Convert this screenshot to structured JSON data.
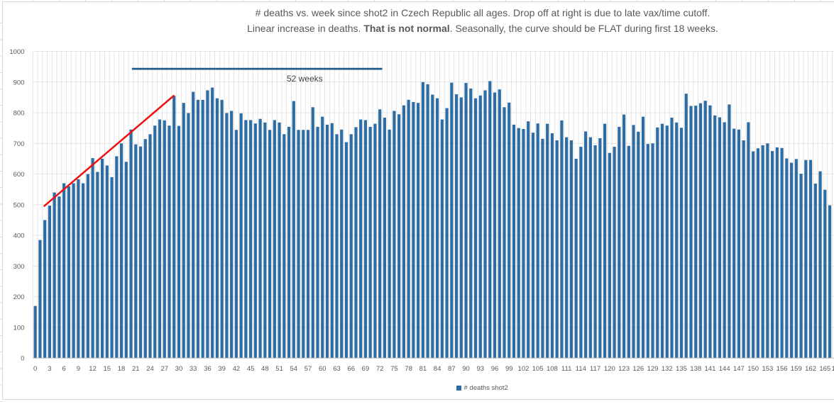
{
  "title": {
    "line1": "# deaths vs. week since shot2 in Czech Republic all ages. Drop off at right is due to late vax/time cutoff.",
    "line2_normal1": "Linear increase in deaths. ",
    "line2_bold": "That is not normal",
    "line2_normal2": ". Seasonally, the curve should be FLAT during first 18 weeks."
  },
  "legend": {
    "label": "# deaths shot2"
  },
  "annotation": {
    "label": "52 weeks",
    "line": {
      "from_week": 20.7,
      "to_week": 73.0,
      "value": 943
    },
    "label_week": 56.3,
    "label_value": 902
  },
  "trendline": {
    "from": {
      "week": 1.9,
      "value": 496
    },
    "to": {
      "week": 28.9,
      "value": 855
    }
  },
  "colors": {
    "bar": "#2E6DA4",
    "grid": "#DCDCDC",
    "axis": "#BFBFBF",
    "tick_text": "#595959",
    "title_text": "#595959",
    "annotation_line": "#1F5C8C",
    "annotation_text": "#3F3F3F",
    "trend_line": "#EE1111",
    "chart_border": "#D9D9D9"
  },
  "chart_data": {
    "type": "bar",
    "title": "# deaths vs. week since shot2 in Czech Republic all ages. Drop off at right is due to late vax/time cutoff. Linear increase in deaths. That is not normal. Seasonally, the curve should be FLAT during first 18 weeks.",
    "xlabel": "",
    "ylabel": "",
    "x_range": [
      0,
      166
    ],
    "ylim": [
      0,
      1000
    ],
    "grid": "both",
    "legend_position": "bottom-center",
    "y_ticks": [
      0,
      100,
      200,
      300,
      400,
      500,
      600,
      700,
      800,
      900,
      1000
    ],
    "x_ticks": [
      0,
      3,
      6,
      9,
      12,
      15,
      18,
      21,
      24,
      27,
      30,
      33,
      36,
      39,
      42,
      45,
      48,
      51,
      54,
      57,
      60,
      63,
      66,
      69,
      72,
      75,
      78,
      81,
      84,
      87,
      90,
      93,
      96,
      99,
      102,
      105,
      108,
      111,
      114,
      117,
      120,
      123,
      126,
      129,
      132,
      135,
      138,
      141,
      144,
      147,
      150,
      153,
      156,
      159,
      162,
      165
    ],
    "x_overflow_label": "1",
    "series": [
      {
        "name": "# deaths shot2",
        "values": [
          170,
          385,
          450,
          497,
          540,
          527,
          570,
          560,
          570,
          583,
          570,
          600,
          652,
          607,
          650,
          628,
          590,
          658,
          700,
          640,
          745,
          697,
          690,
          714,
          730,
          758,
          778,
          775,
          758,
          855,
          757,
          832,
          799,
          868,
          842,
          842,
          873,
          882,
          847,
          842,
          799,
          806,
          744,
          798,
          776,
          776,
          765,
          780,
          768,
          744,
          776,
          768,
          730,
          754,
          838,
          744,
          744,
          744,
          818,
          754,
          787,
          761,
          766,
          730,
          745,
          704,
          730,
          753,
          778,
          776,
          754,
          764,
          811,
          784,
          745,
          806,
          795,
          824,
          842,
          835,
          832,
          900,
          893,
          859,
          847,
          778,
          815,
          898,
          860,
          850,
          897,
          879,
          847,
          856,
          873,
          903,
          866,
          876,
          818,
          833,
          761,
          750,
          747,
          772,
          735,
          765,
          715,
          764,
          733,
          710,
          775,
          720,
          710,
          650,
          689,
          739,
          720,
          694,
          717,
          764,
          669,
          689,
          754,
          794,
          692,
          760,
          738,
          787,
          698,
          700,
          752,
          764,
          758,
          784,
          768,
          751,
          862,
          822,
          823,
          831,
          839,
          824,
          791,
          785,
          769,
          827,
          748,
          745,
          710,
          769,
          674,
          684,
          694,
          700,
          675,
          687,
          685,
          651,
          637,
          649,
          601,
          646,
          646,
          569,
          609,
          549,
          498
        ]
      }
    ]
  }
}
